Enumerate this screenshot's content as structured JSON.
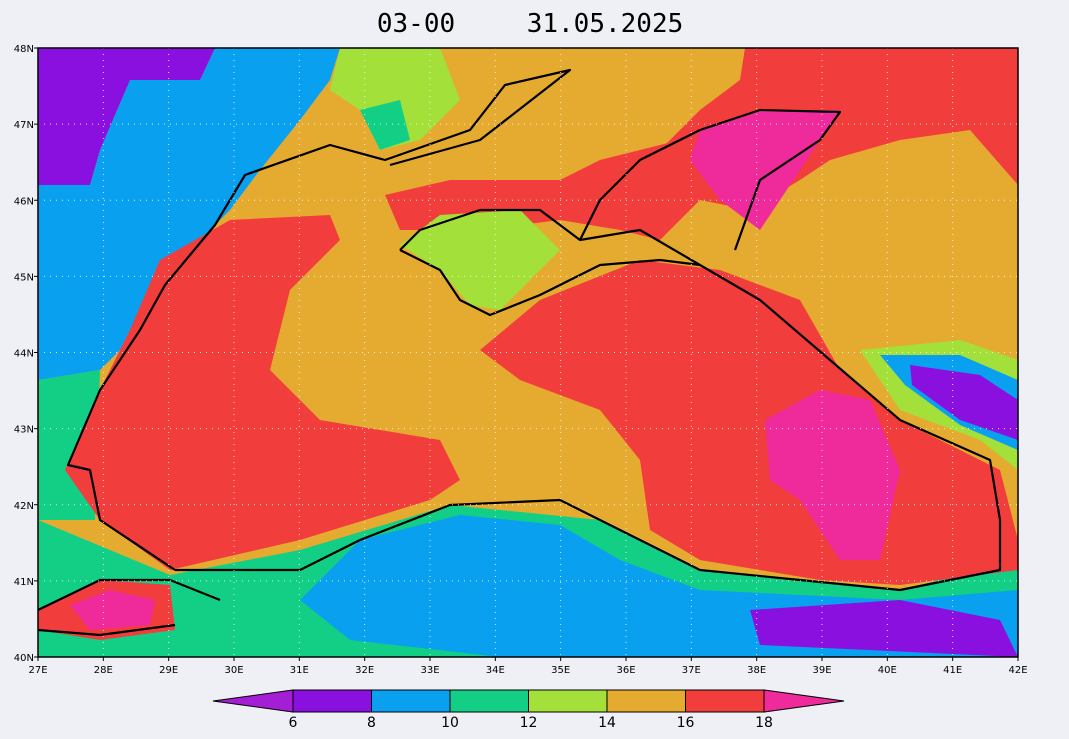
{
  "title": {
    "time": "03-00",
    "date": "31.05.2025"
  },
  "map": {
    "lon_labels": [
      "27E",
      "28E",
      "29E",
      "30E",
      "31E",
      "32E",
      "33E",
      "34E",
      "35E",
      "36E",
      "37E",
      "38E",
      "39E",
      "40E",
      "41E",
      "42E"
    ],
    "lat_labels": [
      "40N",
      "41N",
      "42N",
      "43N",
      "44N",
      "45N",
      "46N",
      "47N",
      "48N"
    ]
  },
  "colorbar": {
    "levels": [
      6,
      8,
      10,
      12,
      14,
      16,
      18
    ],
    "colors": [
      "#a41ed6",
      "#8a10e0",
      "#0aa0f0",
      "#12cf85",
      "#a3e03a",
      "#e5ab30",
      "#f23d3d",
      "#ef2a9a"
    ]
  }
}
